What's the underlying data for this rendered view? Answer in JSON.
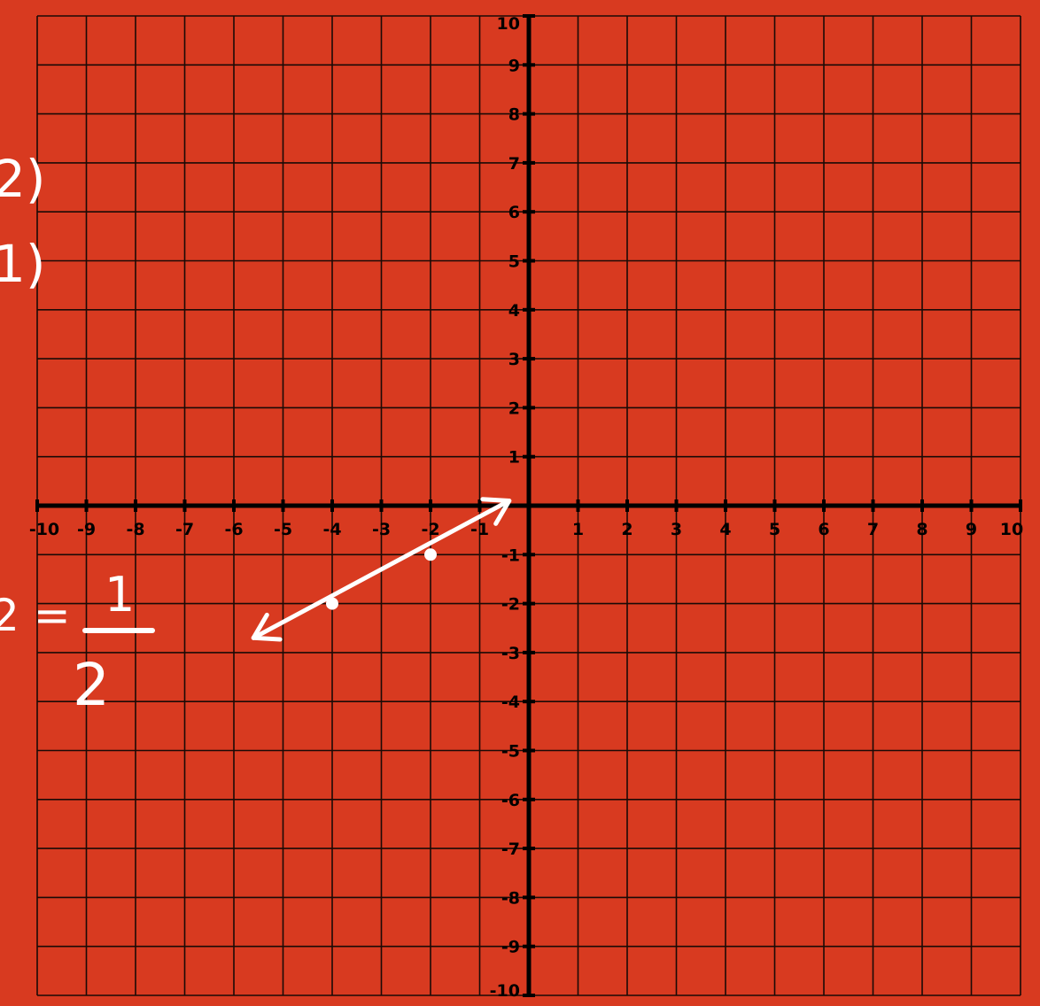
{
  "colors": {
    "background": "#D83A20",
    "grid_line": "#1A0A06",
    "axis": "#000000",
    "ink": "#FFFFFF"
  },
  "chart_data": {
    "type": "coordinate-plane",
    "xlim": [
      -10,
      10
    ],
    "ylim": [
      -10,
      10
    ],
    "grid": true,
    "grid_step": 1,
    "x_ticks": [
      -10,
      -9,
      -8,
      -7,
      -6,
      -5,
      -4,
      -3,
      -2,
      -1,
      1,
      2,
      3,
      4,
      5,
      6,
      7,
      8,
      9,
      10
    ],
    "y_ticks": [
      -10,
      -9,
      -8,
      -7,
      -6,
      -5,
      -4,
      -3,
      -2,
      -1,
      1,
      2,
      3,
      4,
      5,
      6,
      7,
      8,
      9,
      10
    ],
    "plotted_points": [
      {
        "x": -4,
        "y": -2
      },
      {
        "x": -2,
        "y": -1
      }
    ],
    "line": {
      "through": [
        [
          -4,
          -2
        ],
        [
          -2,
          -1
        ]
      ],
      "arrowhead_ends": [
        [
          -5.6,
          -2.7
        ],
        [
          -0.4,
          0.1
        ]
      ]
    }
  },
  "handwriting": {
    "fragment_1": "2)",
    "fragment_2": "1)",
    "equation_left": "2 =",
    "fraction_numerator": "1",
    "fraction_denominator": "2"
  }
}
